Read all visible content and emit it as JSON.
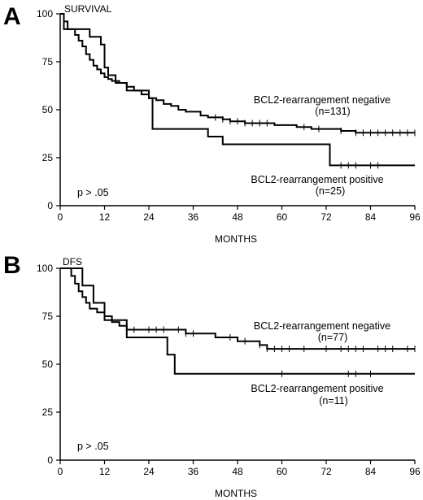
{
  "chart_data": [
    {
      "type": "line",
      "panel_letter": "A",
      "title": "SURVIVAL",
      "xlabel": "MONTHS",
      "ylabel": "",
      "xlim": [
        0,
        96
      ],
      "ylim": [
        0,
        100
      ],
      "xticks": [
        0,
        12,
        24,
        36,
        48,
        60,
        72,
        84,
        96
      ],
      "yticks": [
        0,
        25,
        50,
        75,
        100
      ],
      "grid": false,
      "pvalue_text": "p > .05",
      "series": [
        {
          "label_line1": "BCL2-rearrangement negative",
          "label_line2": "(n=131)",
          "steps": [
            [
              0,
              100
            ],
            [
              1,
              96
            ],
            [
              2,
              92
            ],
            [
              4,
              89
            ],
            [
              5,
              86
            ],
            [
              6,
              83
            ],
            [
              7,
              79
            ],
            [
              8,
              76
            ],
            [
              9,
              73
            ],
            [
              10,
              71
            ],
            [
              11,
              69
            ],
            [
              12,
              67
            ],
            [
              13,
              66
            ],
            [
              14,
              65
            ],
            [
              16,
              64
            ],
            [
              18,
              62
            ],
            [
              20,
              60
            ],
            [
              22,
              58
            ],
            [
              24,
              56
            ],
            [
              26,
              55
            ],
            [
              28,
              53
            ],
            [
              30,
              52
            ],
            [
              32,
              50
            ],
            [
              34,
              49
            ],
            [
              38,
              47
            ],
            [
              40,
              46
            ],
            [
              44,
              45
            ],
            [
              46,
              44
            ],
            [
              50,
              43
            ],
            [
              58,
              42
            ],
            [
              64,
              41
            ],
            [
              68,
              40
            ],
            [
              76,
              39
            ],
            [
              80,
              38
            ],
            [
              96,
              38
            ]
          ],
          "censor_ticks": [
            42,
            44,
            46,
            48,
            50,
            52,
            54,
            56,
            66,
            70,
            76,
            80,
            82,
            84,
            86,
            88,
            90,
            92,
            94,
            96
          ]
        },
        {
          "label_line1": "BCL2-rearrangement positive",
          "label_line2": "(n=25)",
          "steps": [
            [
              0,
              100
            ],
            [
              1,
              92
            ],
            [
              8,
              88
            ],
            [
              11,
              84
            ],
            [
              12,
              72
            ],
            [
              13,
              68
            ],
            [
              15,
              64
            ],
            [
              18,
              60
            ],
            [
              24,
              56
            ],
            [
              25,
              40
            ],
            [
              40,
              36
            ],
            [
              44,
              32
            ],
            [
              73,
              21
            ],
            [
              96,
              21
            ]
          ],
          "censor_ticks": [
            76,
            78,
            80,
            84,
            86
          ]
        }
      ]
    },
    {
      "type": "line",
      "panel_letter": "B",
      "title": "DFS",
      "xlabel": "MONTHS",
      "ylabel": "",
      "xlim": [
        0,
        96
      ],
      "ylim": [
        0,
        100
      ],
      "xticks": [
        0,
        12,
        24,
        36,
        48,
        60,
        72,
        84,
        96
      ],
      "yticks": [
        0,
        25,
        50,
        75,
        100
      ],
      "grid": false,
      "pvalue_text": "p > .05",
      "series": [
        {
          "label_line1": "BCL2-rearrangement negative",
          "label_line2": "(n=77)",
          "steps": [
            [
              0,
              100
            ],
            [
              3,
              96
            ],
            [
              4,
              92
            ],
            [
              5,
              88
            ],
            [
              6,
              85
            ],
            [
              7,
              82
            ],
            [
              8,
              79
            ],
            [
              10,
              77
            ],
            [
              12,
              75
            ],
            [
              14,
              72
            ],
            [
              16,
              70
            ],
            [
              18,
              68
            ],
            [
              34,
              66
            ],
            [
              42,
              64
            ],
            [
              48,
              62
            ],
            [
              54,
              60
            ],
            [
              56,
              58
            ],
            [
              96,
              58
            ]
          ],
          "censor_ticks": [
            20,
            24,
            26,
            28,
            32,
            34,
            36,
            46,
            50,
            54,
            56,
            58,
            60,
            62,
            66,
            72,
            76,
            78,
            80,
            82,
            86,
            88,
            90,
            94,
            96
          ]
        },
        {
          "label_line1": "BCL2-rearrangement positive",
          "label_line2": "(n=11)",
          "steps": [
            [
              0,
              100
            ],
            [
              6,
              91
            ],
            [
              9,
              82
            ],
            [
              12,
              73
            ],
            [
              18,
              64
            ],
            [
              29,
              55
            ],
            [
              31,
              45
            ],
            [
              96,
              45
            ]
          ],
          "censor_ticks": [
            60,
            78,
            80,
            84
          ]
        }
      ]
    }
  ]
}
